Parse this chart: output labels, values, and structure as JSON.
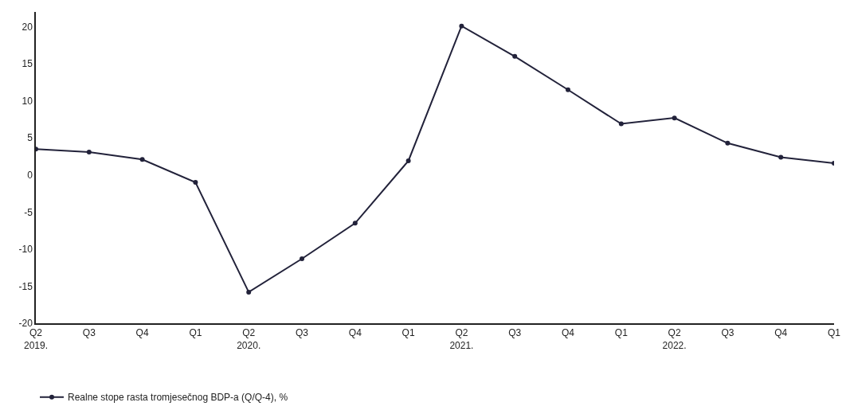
{
  "chart_data": {
    "type": "line",
    "categories": [
      "Q2\n2019.",
      "Q3",
      "Q4",
      "Q1",
      "Q2\n2020.",
      "Q3",
      "Q4",
      "Q1",
      "Q2\n2021.",
      "Q3",
      "Q4",
      "Q1",
      "Q2\n2022.",
      "Q3",
      "Q4",
      "Q1"
    ],
    "series": [
      {
        "name": "Realne stope rasta tromjesečnog BDP-a (Q/Q-4), %",
        "color": "#22223a",
        "values": [
          3.5,
          3.1,
          2.1,
          -1.0,
          -15.8,
          -11.3,
          -6.5,
          1.9,
          20.1,
          16.0,
          11.5,
          6.9,
          7.7,
          4.3,
          2.4,
          1.6
        ]
      }
    ],
    "ylim": [
      -20,
      22
    ],
    "yticks": [
      -20,
      -15,
      -10,
      -5,
      0,
      5,
      10,
      15,
      20
    ],
    "marker": "circle",
    "line_style": "solid",
    "legend": "bottom left"
  }
}
